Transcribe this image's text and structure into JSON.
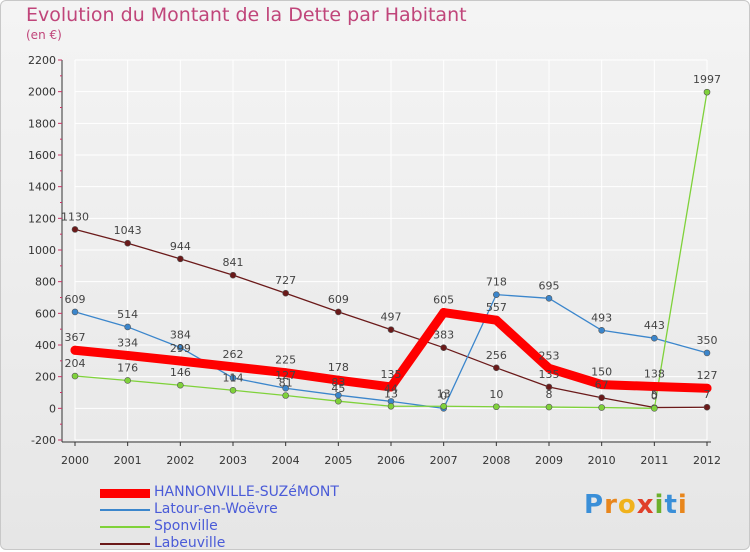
{
  "title": "Evolution du Montant de la Dette par Habitant",
  "subtitle": "(en €)",
  "logo_letters": [
    "P",
    "r",
    "o",
    "x",
    "i",
    "t",
    "i"
  ],
  "colors": {
    "title": "#c0457a",
    "legend_text": "#4a5bd8",
    "axis": "#333333",
    "grid": "#ffffff"
  },
  "chart_data": {
    "type": "line",
    "title": "Evolution du Montant de la Dette par Habitant",
    "ylabel": "(en €)",
    "xlabel": "",
    "x": [
      2000,
      2001,
      2002,
      2003,
      2004,
      2005,
      2006,
      2007,
      2008,
      2009,
      2010,
      2011,
      2012
    ],
    "ylim": [
      -200,
      2200
    ],
    "yticks": [
      -200,
      0,
      200,
      400,
      600,
      800,
      1000,
      1200,
      1400,
      1600,
      1800,
      2000,
      2200
    ],
    "grid": true,
    "legend_position": "bottom-left",
    "series": [
      {
        "name": "HANNONVILLE-SUZéMONT",
        "color": "#ff0000",
        "values": [
          367,
          334,
          299,
          262,
          225,
          178,
          135,
          605,
          557,
          253,
          150,
          138,
          127
        ],
        "labels": [
          "367",
          "334",
          "299",
          "262",
          "225",
          "178",
          "135",
          "605",
          "557",
          "253",
          "150",
          "138",
          "127"
        ]
      },
      {
        "name": "Latour-en-Woëvre",
        "color": "#3b86cc",
        "values": [
          609,
          514,
          384,
          192,
          127,
          83,
          44,
          0,
          718,
          695,
          493,
          443,
          350
        ],
        "labels": [
          "609",
          "514",
          "384",
          "",
          "127",
          "83",
          "44",
          "0",
          "718",
          "695",
          "493",
          "443",
          "350"
        ]
      },
      {
        "name": "Sponville",
        "color": "#7fd23a",
        "values": [
          204,
          176,
          146,
          114,
          81,
          45,
          13,
          13,
          10,
          8,
          5,
          0,
          1997
        ],
        "labels": [
          "204",
          "176",
          "146",
          "114",
          "81",
          "45",
          "13",
          "13",
          "10",
          "8",
          "",
          "0",
          "1997"
        ]
      },
      {
        "name": "Labeuville",
        "color": "#6b1a1a",
        "values": [
          1130,
          1043,
          944,
          841,
          727,
          609,
          497,
          383,
          256,
          135,
          67,
          5,
          7
        ],
        "labels": [
          "1130",
          "1043",
          "944",
          "841",
          "727",
          "609",
          "497",
          "383",
          "256",
          "135",
          "67",
          "5",
          "7"
        ]
      }
    ]
  }
}
